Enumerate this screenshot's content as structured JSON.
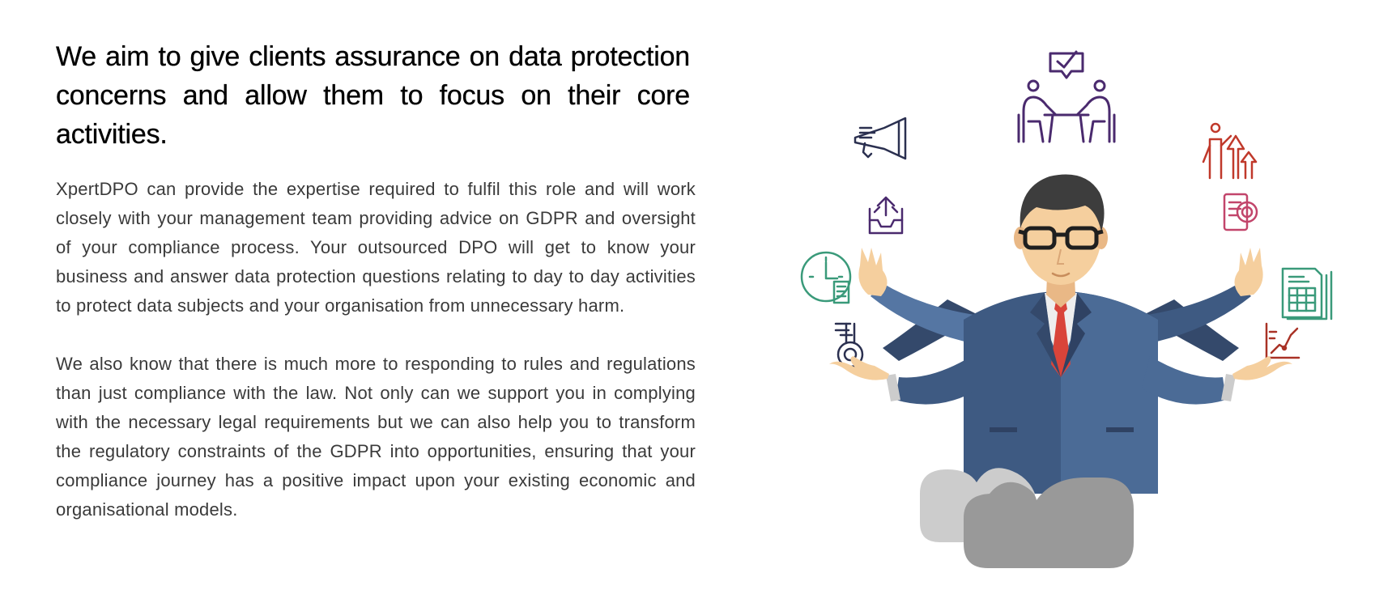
{
  "heading": "We aim to give clients assurance on data protection concerns and allow them to focus on their core activities.",
  "paragraphs": [
    "XpertDPO can provide the expertise required to fulfil this role and will work closely with your management team providing advice on GDPR and oversight of your compliance process. Your outsourced DPO will get to know your business and answer data protection questions relating to day to day activities to protect data subjects and your organisation from unnecessary harm.",
    "We also know that there is much more to responding to rules and regulations than just compliance with the law. Not only can we support you in complying with the necessary legal requirements but we can also help you to transform the regulatory constraints of the GDPR into opportunities, ensuring that your compliance journey has a positive impact upon your existing economic and organisational models."
  ],
  "colors": {
    "heading": "#000000",
    "body_text": "#3a3a3a",
    "suit": "#3e5a82",
    "suit_light": "#5576a3",
    "skin": "#f5cf9e",
    "hair": "#3d3d3d",
    "tie": "#d9443a",
    "cloud_light": "#cccccc",
    "cloud_dark": "#999999",
    "icon_purple": "#4a2a6e",
    "icon_navy": "#2b3050",
    "icon_red": "#c0392b",
    "icon_pink": "#c2456b",
    "icon_green": "#3a9a7a",
    "icon_darkred": "#a93226"
  },
  "icons": [
    "meeting-checkmark-icon",
    "megaphone-icon",
    "inbox-upload-icon",
    "clock-document-icon",
    "lab-flask-icon",
    "presenter-growth-icon",
    "mobile-finance-icon",
    "spreadsheet-icon",
    "line-chart-icon"
  ]
}
